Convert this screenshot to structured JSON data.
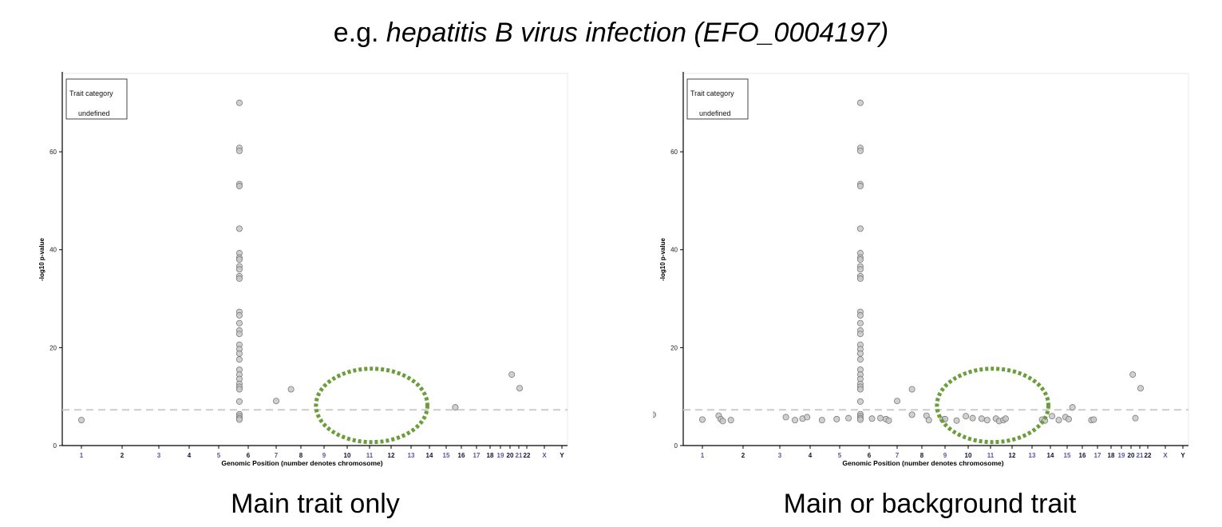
{
  "header": {
    "prefix": "e.g.",
    "trait": "hepatitis B virus infection (EFO_0004197)"
  },
  "style": {
    "point_fill": "#c8c8c8",
    "point_stroke": "#7a7a7a",
    "threshold_color": "#cccccc",
    "highlight_color": "#6a9e3a",
    "chrom_label_dark": "#111133",
    "chrom_label_light": "#5555aa"
  },
  "chart_data": [
    {
      "type": "scatter",
      "caption": "Main trait only",
      "xlabel": "Genomic Position (number denotes chromosome)",
      "ylabel": "-log10 p-value",
      "ylim": [
        0,
        76
      ],
      "yticks": [
        0,
        20,
        40,
        60
      ],
      "x_ticks": [
        "1",
        "2",
        "3",
        "4",
        "5",
        "6",
        "7",
        "8",
        "9",
        "10",
        "11",
        "12",
        "13",
        "14",
        "15",
        "16",
        "17",
        "18",
        "19",
        "20",
        "21",
        "22",
        "X",
        "Y"
      ],
      "legend": {
        "title": "Trait category",
        "entry": "undefined",
        "position": "top-left"
      },
      "threshold": 7.3,
      "highlight": {
        "shape": "dotted-ellipse",
        "center": [
          11.1,
          8.2
        ],
        "rx": 2.6,
        "ry": 7.5
      },
      "points": [
        [
          0.0,
          5.2
        ],
        [
          5.7,
          70.0
        ],
        [
          5.7,
          60.8
        ],
        [
          5.7,
          60.2
        ],
        [
          5.7,
          53.4
        ],
        [
          5.7,
          53.0
        ],
        [
          5.7,
          44.3
        ],
        [
          5.7,
          39.3
        ],
        [
          5.7,
          38.4
        ],
        [
          5.7,
          38.0
        ],
        [
          5.7,
          36.6
        ],
        [
          5.7,
          36.0
        ],
        [
          5.7,
          34.6
        ],
        [
          5.7,
          34.1
        ],
        [
          5.7,
          27.3
        ],
        [
          5.7,
          26.6
        ],
        [
          5.7,
          25.0
        ],
        [
          5.7,
          23.5
        ],
        [
          5.7,
          22.8
        ],
        [
          5.7,
          20.6
        ],
        [
          5.7,
          19.7
        ],
        [
          5.7,
          18.8
        ],
        [
          5.7,
          17.6
        ],
        [
          5.7,
          15.5
        ],
        [
          5.7,
          14.5
        ],
        [
          5.7,
          13.6
        ],
        [
          5.7,
          12.6
        ],
        [
          5.7,
          12.0
        ],
        [
          5.7,
          11.5
        ],
        [
          5.7,
          9.0
        ],
        [
          5.7,
          6.4
        ],
        [
          5.7,
          6.0
        ],
        [
          5.7,
          5.6
        ],
        [
          5.7,
          5.3
        ],
        [
          7.0,
          9.1
        ],
        [
          7.6,
          11.5
        ],
        [
          15.6,
          7.8
        ],
        [
          20.2,
          14.5
        ],
        [
          21.1,
          11.7
        ]
      ]
    },
    {
      "type": "scatter",
      "caption": "Main or background trait",
      "xlabel": "Genomic Position (number denotes chromosome)",
      "ylabel": "-log10 p-value",
      "ylim": [
        0,
        76
      ],
      "yticks": [
        0,
        20,
        40,
        60
      ],
      "x_ticks": [
        "1",
        "2",
        "3",
        "4",
        "5",
        "6",
        "7",
        "8",
        "9",
        "10",
        "11",
        "12",
        "13",
        "14",
        "15",
        "16",
        "17",
        "18",
        "19",
        "20",
        "21",
        "22",
        "X",
        "Y"
      ],
      "legend": {
        "title": "Trait category",
        "entry": "undefined",
        "position": "top-left"
      },
      "threshold": 7.3,
      "highlight": {
        "shape": "dotted-ellipse",
        "center": [
          11.1,
          8.2
        ],
        "rx": 2.6,
        "ry": 7.5
      },
      "points": [
        [
          0.0,
          5.3
        ],
        [
          0.8,
          6.3
        ],
        [
          1.4,
          6.1
        ],
        [
          1.45,
          5.4
        ],
        [
          1.5,
          5.0
        ],
        [
          1.7,
          5.2
        ],
        [
          3.2,
          5.8
        ],
        [
          3.5,
          5.2
        ],
        [
          3.75,
          5.5
        ],
        [
          3.9,
          5.8
        ],
        [
          4.4,
          5.2
        ],
        [
          4.9,
          5.4
        ],
        [
          5.3,
          5.6
        ],
        [
          5.7,
          70.0
        ],
        [
          5.7,
          60.8
        ],
        [
          5.7,
          60.2
        ],
        [
          5.7,
          53.4
        ],
        [
          5.7,
          53.0
        ],
        [
          5.7,
          44.3
        ],
        [
          5.7,
          39.3
        ],
        [
          5.7,
          38.4
        ],
        [
          5.7,
          38.0
        ],
        [
          5.7,
          36.6
        ],
        [
          5.7,
          36.0
        ],
        [
          5.7,
          34.6
        ],
        [
          5.7,
          34.1
        ],
        [
          5.7,
          27.3
        ],
        [
          5.7,
          26.6
        ],
        [
          5.7,
          25.0
        ],
        [
          5.7,
          23.5
        ],
        [
          5.7,
          22.8
        ],
        [
          5.7,
          20.6
        ],
        [
          5.7,
          19.7
        ],
        [
          5.7,
          18.8
        ],
        [
          5.7,
          17.6
        ],
        [
          5.7,
          15.5
        ],
        [
          5.7,
          14.5
        ],
        [
          5.7,
          13.6
        ],
        [
          5.7,
          12.6
        ],
        [
          5.7,
          12.0
        ],
        [
          5.7,
          11.5
        ],
        [
          5.7,
          9.0
        ],
        [
          5.7,
          6.4
        ],
        [
          5.7,
          6.0
        ],
        [
          5.7,
          5.6
        ],
        [
          5.7,
          5.3
        ],
        [
          6.1,
          5.5
        ],
        [
          6.4,
          5.6
        ],
        [
          6.6,
          5.4
        ],
        [
          6.7,
          5.1
        ],
        [
          7.0,
          9.1
        ],
        [
          7.6,
          11.5
        ],
        [
          7.6,
          6.3
        ],
        [
          8.2,
          6.1
        ],
        [
          8.3,
          5.2
        ],
        [
          8.9,
          5.3
        ],
        [
          9.0,
          5.4
        ],
        [
          9.5,
          5.1
        ],
        [
          9.9,
          6.0
        ],
        [
          10.2,
          5.6
        ],
        [
          10.6,
          5.5
        ],
        [
          10.85,
          5.2
        ],
        [
          11.25,
          5.5
        ],
        [
          11.4,
          5.0
        ],
        [
          11.6,
          5.2
        ],
        [
          11.7,
          5.5
        ],
        [
          13.55,
          5.3
        ],
        [
          13.7,
          5.1
        ],
        [
          14.1,
          6.0
        ],
        [
          14.5,
          5.2
        ],
        [
          14.9,
          5.8
        ],
        [
          15.1,
          5.4
        ],
        [
          15.35,
          7.8
        ],
        [
          16.6,
          5.2
        ],
        [
          16.75,
          5.3
        ],
        [
          20.2,
          14.5
        ],
        [
          20.5,
          5.6
        ],
        [
          21.1,
          11.7
        ]
      ]
    }
  ]
}
